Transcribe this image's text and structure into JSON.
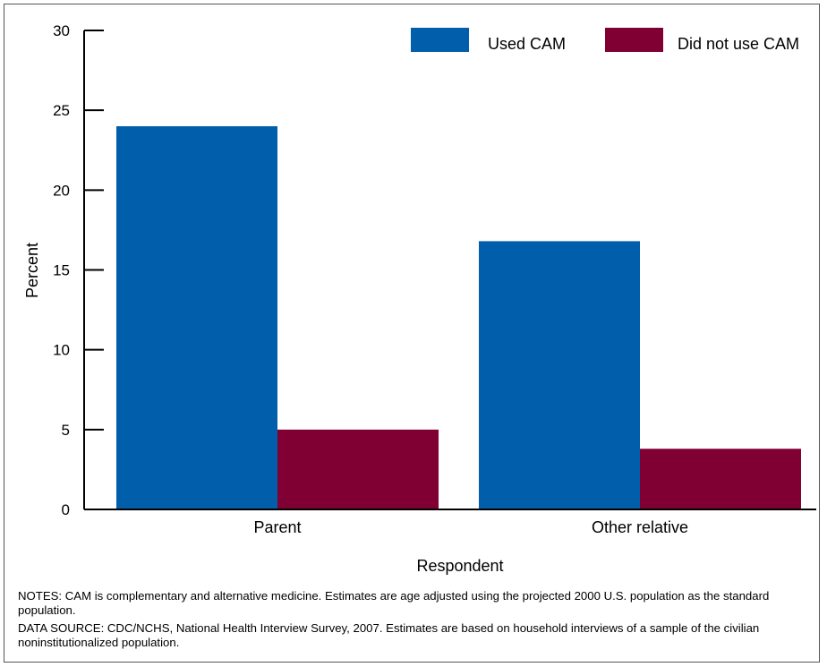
{
  "chart_data": {
    "type": "bar",
    "categories": [
      "Parent",
      "Other relative"
    ],
    "series": [
      {
        "name": "Used CAM",
        "color": "#005eaa",
        "values": [
          24.0,
          16.8
        ]
      },
      {
        "name": "Did not use CAM",
        "color": "#800033",
        "values": [
          5.0,
          3.8
        ]
      }
    ],
    "xlabel": "Respondent",
    "ylabel": "Percent",
    "ylim": [
      0,
      30
    ],
    "yticks": [
      0,
      5,
      10,
      15,
      20,
      25,
      30
    ],
    "legend": "top-right",
    "grid": false
  },
  "notes": {
    "line1": "NOTES: CAM is complementary and alternative medicine. Estimates are age adjusted using the projected 2000 U.S. population as the standard population.",
    "line2": "DATA SOURCE: CDC/NCHS, National Health Interview Survey, 2007. Estimates are based on household interviews of a sample of the civilian noninstitutionalized population."
  }
}
